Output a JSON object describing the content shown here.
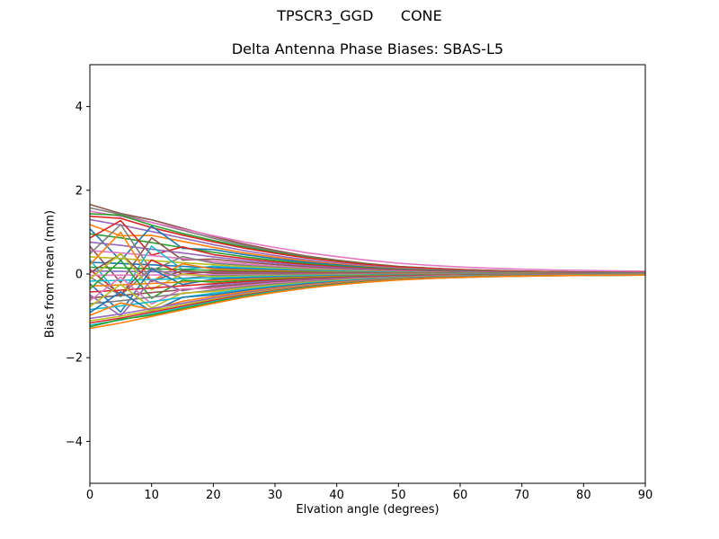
{
  "figure": {
    "suptitle": "TPSCR3_GGD      CONE",
    "axes_title": "Delta Antenna Phase Biases: SBAS-L5",
    "xlabel": "Elvation angle (degrees)",
    "ylabel": "Bias from mean (mm)",
    "background_color": "#ffffff",
    "spine_color": "#000000"
  },
  "chart_data": {
    "type": "line",
    "title": "TPSCR3_GGD      CONE",
    "subtitle": "Delta Antenna Phase Biases: SBAS-L5",
    "xlabel": "Elvation angle (degrees)",
    "ylabel": "Bias from mean (mm)",
    "xlim": [
      0,
      90
    ],
    "ylim": [
      -5,
      5
    ],
    "xticks": [
      0,
      10,
      20,
      30,
      40,
      50,
      60,
      70,
      80,
      90
    ],
    "yticks": [
      -4,
      -2,
      0,
      2,
      4
    ],
    "ytick_labels": [
      "−4",
      "−2",
      "0",
      "2",
      "4"
    ],
    "grid": false,
    "legend": "none",
    "n_series": 44,
    "elevations_deg": [
      0,
      5,
      10,
      15,
      20,
      25,
      30,
      35,
      40,
      45,
      50,
      55,
      60,
      65,
      70,
      75,
      80,
      85,
      90
    ],
    "decay_profile": [
      1.0,
      0.9,
      0.78,
      0.66,
      0.54,
      0.43,
      0.34,
      0.26,
      0.2,
      0.15,
      0.11,
      0.085,
      0.065,
      0.05,
      0.04,
      0.032,
      0.027,
      0.023,
      0.02
    ],
    "series_note": "value(e_j) = bias_at_0deg * decay_profile[j]^decay_power + low_elev_wiggle[j]; wiggle applies to first 4 points only",
    "color_cycle": [
      "#1f77b4",
      "#ff7f0e",
      "#2ca02c",
      "#d62728",
      "#9467bd",
      "#8c564b",
      "#e377c2",
      "#7f7f7f",
      "#bcbd22",
      "#17becf"
    ],
    "series": [
      {
        "name": "line-01",
        "color": "#8c564b",
        "bias_at_0deg": 1.66,
        "decay_power": 1,
        "low_elev_wiggle": [
          0,
          -0.05,
          0,
          0
        ]
      },
      {
        "name": "line-02",
        "color": "#7f7f7f",
        "bias_at_0deg": 1.58,
        "decay_power": 1,
        "low_elev_wiggle": [
          0,
          0,
          0,
          0
        ]
      },
      {
        "name": "line-03",
        "color": "#e377c2",
        "bias_at_0deg": 1.5,
        "decay_power": 0.8,
        "low_elev_wiggle": [
          0,
          0,
          0,
          0
        ]
      },
      {
        "name": "line-04",
        "color": "#2ca02c",
        "bias_at_0deg": 1.44,
        "decay_power": 0.95,
        "low_elev_wiggle": [
          0,
          0.1,
          0.03,
          0
        ]
      },
      {
        "name": "line-05",
        "color": "#d62728",
        "bias_at_0deg": 1.38,
        "decay_power": 0.95,
        "low_elev_wiggle": [
          0,
          0.08,
          0.02,
          0
        ]
      },
      {
        "name": "line-06",
        "color": "#9467bd",
        "bias_at_0deg": 1.3,
        "decay_power": 1,
        "low_elev_wiggle": [
          0,
          0,
          0,
          0
        ]
      },
      {
        "name": "line-07",
        "color": "#ff7f0e",
        "bias_at_0deg": 1.18,
        "decay_power": 1,
        "low_elev_wiggle": [
          0,
          -0.15,
          0,
          0
        ]
      },
      {
        "name": "line-08",
        "color": "#1f77b4",
        "bias_at_0deg": 1.08,
        "decay_power": 1,
        "low_elev_wiggle": [
          0,
          -0.65,
          0.3,
          -0.1
        ]
      },
      {
        "name": "line-09",
        "color": "#2ca02c",
        "bias_at_0deg": 0.96,
        "decay_power": 1,
        "low_elev_wiggle": [
          0,
          0,
          0,
          0
        ]
      },
      {
        "name": "line-10",
        "color": "#d62728",
        "bias_at_0deg": 0.86,
        "decay_power": 1,
        "low_elev_wiggle": [
          0,
          0.5,
          -0.22,
          0.08
        ]
      },
      {
        "name": "line-11",
        "color": "#9467bd",
        "bias_at_0deg": 0.76,
        "decay_power": 1,
        "low_elev_wiggle": [
          0,
          0,
          0,
          0
        ]
      },
      {
        "name": "line-12",
        "color": "#8c564b",
        "bias_at_0deg": 0.66,
        "decay_power": 1,
        "low_elev_wiggle": [
          0,
          -0.8,
          0.35,
          -0.1
        ]
      },
      {
        "name": "line-13",
        "color": "#e377c2",
        "bias_at_0deg": 0.56,
        "decay_power": 1,
        "low_elev_wiggle": [
          0,
          0,
          0,
          0
        ]
      },
      {
        "name": "line-14",
        "color": "#7f7f7f",
        "bias_at_0deg": 0.48,
        "decay_power": 1,
        "low_elev_wiggle": [
          0,
          0.75,
          -0.3,
          0.1
        ]
      },
      {
        "name": "line-15",
        "color": "#bcbd22",
        "bias_at_0deg": 0.41,
        "decay_power": 1,
        "low_elev_wiggle": [
          0,
          0,
          0,
          0
        ]
      },
      {
        "name": "line-16",
        "color": "#17becf",
        "bias_at_0deg": 0.34,
        "decay_power": 1,
        "low_elev_wiggle": [
          0,
          -0.85,
          0.4,
          -0.12
        ]
      },
      {
        "name": "line-17",
        "color": "#1f77b4",
        "bias_at_0deg": 0.28,
        "decay_power": 1,
        "low_elev_wiggle": [
          0,
          0,
          0,
          0
        ]
      },
      {
        "name": "line-18",
        "color": "#ff7f0e",
        "bias_at_0deg": 0.22,
        "decay_power": 1,
        "low_elev_wiggle": [
          0,
          0.8,
          -0.35,
          0.1
        ]
      },
      {
        "name": "line-19",
        "color": "#2ca02c",
        "bias_at_0deg": 0.16,
        "decay_power": 1,
        "low_elev_wiggle": [
          0,
          0,
          0,
          0
        ]
      },
      {
        "name": "line-20",
        "color": "#d62728",
        "bias_at_0deg": 0.11,
        "decay_power": 1,
        "low_elev_wiggle": [
          0,
          -0.6,
          0.25,
          -0.08
        ]
      },
      {
        "name": "line-21",
        "color": "#9467bd",
        "bias_at_0deg": 0.07,
        "decay_power": 1,
        "low_elev_wiggle": [
          0,
          0,
          0,
          0
        ]
      },
      {
        "name": "line-22",
        "color": "#8c564b",
        "bias_at_0deg": 0.03,
        "decay_power": 1,
        "low_elev_wiggle": [
          0,
          0.45,
          -0.2,
          0.06
        ]
      },
      {
        "name": "line-23",
        "color": "#e377c2",
        "bias_at_0deg": -0.03,
        "decay_power": 1,
        "low_elev_wiggle": [
          0,
          0,
          0,
          0
        ]
      },
      {
        "name": "line-24",
        "color": "#7f7f7f",
        "bias_at_0deg": -0.07,
        "decay_power": 1,
        "low_elev_wiggle": [
          0,
          -0.45,
          0.2,
          -0.06
        ]
      },
      {
        "name": "line-25",
        "color": "#bcbd22",
        "bias_at_0deg": -0.12,
        "decay_power": 1,
        "low_elev_wiggle": [
          0,
          0.6,
          -0.28,
          0.08
        ]
      },
      {
        "name": "line-26",
        "color": "#17becf",
        "bias_at_0deg": -0.17,
        "decay_power": 1,
        "low_elev_wiggle": [
          0,
          0,
          0,
          0
        ]
      },
      {
        "name": "line-27",
        "color": "#1f77b4",
        "bias_at_0deg": -0.23,
        "decay_power": 1,
        "low_elev_wiggle": [
          0,
          -0.7,
          0.3,
          -0.1
        ]
      },
      {
        "name": "line-28",
        "color": "#ff7f0e",
        "bias_at_0deg": -0.29,
        "decay_power": 1,
        "low_elev_wiggle": [
          0,
          0,
          0,
          0
        ]
      },
      {
        "name": "line-29",
        "color": "#2ca02c",
        "bias_at_0deg": -0.36,
        "decay_power": 1,
        "low_elev_wiggle": [
          0,
          0.65,
          -0.3,
          0.09
        ]
      },
      {
        "name": "line-30",
        "color": "#d62728",
        "bias_at_0deg": -0.43,
        "decay_power": 1,
        "low_elev_wiggle": [
          0,
          0,
          0,
          0
        ]
      },
      {
        "name": "line-31",
        "color": "#9467bd",
        "bias_at_0deg": -0.5,
        "decay_power": 1,
        "low_elev_wiggle": [
          0,
          -0.55,
          0.25,
          -0.07
        ]
      },
      {
        "name": "line-32",
        "color": "#8c564b",
        "bias_at_0deg": -0.57,
        "decay_power": 1,
        "low_elev_wiggle": [
          0,
          0,
          0,
          0
        ]
      },
      {
        "name": "line-33",
        "color": "#e377c2",
        "bias_at_0deg": -0.64,
        "decay_power": 1,
        "low_elev_wiggle": [
          0,
          0.5,
          -0.22,
          0.07
        ]
      },
      {
        "name": "line-34",
        "color": "#7f7f7f",
        "bias_at_0deg": -0.71,
        "decay_power": 1,
        "low_elev_wiggle": [
          0,
          0,
          0,
          0
        ]
      },
      {
        "name": "line-35",
        "color": "#bcbd22",
        "bias_at_0deg": -0.78,
        "decay_power": 1,
        "low_elev_wiggle": [
          0,
          0.45,
          -0.2,
          0.06
        ]
      },
      {
        "name": "line-36",
        "color": "#17becf",
        "bias_at_0deg": -0.85,
        "decay_power": 1,
        "low_elev_wiggle": [
          0,
          0,
          0,
          0
        ]
      },
      {
        "name": "line-37",
        "color": "#1f77b4",
        "bias_at_0deg": -0.92,
        "decay_power": 1,
        "low_elev_wiggle": [
          0,
          0.4,
          -0.18,
          0.05
        ]
      },
      {
        "name": "line-38",
        "color": "#ff7f0e",
        "bias_at_0deg": -0.99,
        "decay_power": 1,
        "low_elev_wiggle": [
          0,
          0.2,
          -0.08,
          0
        ]
      },
      {
        "name": "line-39",
        "color": "#9467bd",
        "bias_at_0deg": -1.06,
        "decay_power": 1,
        "low_elev_wiggle": [
          0,
          0,
          0,
          0
        ]
      },
      {
        "name": "line-40",
        "color": "#bcbd22",
        "bias_at_0deg": -1.12,
        "decay_power": 1,
        "low_elev_wiggle": [
          0,
          0,
          0,
          0
        ]
      },
      {
        "name": "line-41",
        "color": "#d62728",
        "bias_at_0deg": -1.17,
        "decay_power": 1,
        "low_elev_wiggle": [
          0,
          0,
          0,
          0
        ]
      },
      {
        "name": "line-42",
        "color": "#17becf",
        "bias_at_0deg": -1.22,
        "decay_power": 1,
        "low_elev_wiggle": [
          0,
          0,
          0,
          0
        ]
      },
      {
        "name": "line-43",
        "color": "#2ca02c",
        "bias_at_0deg": -1.26,
        "decay_power": 1,
        "low_elev_wiggle": [
          0,
          0.05,
          0,
          0
        ]
      },
      {
        "name": "line-44",
        "color": "#ff7f0e",
        "bias_at_0deg": -1.3,
        "decay_power": 1,
        "low_elev_wiggle": [
          0,
          0,
          0,
          0
        ]
      }
    ]
  }
}
